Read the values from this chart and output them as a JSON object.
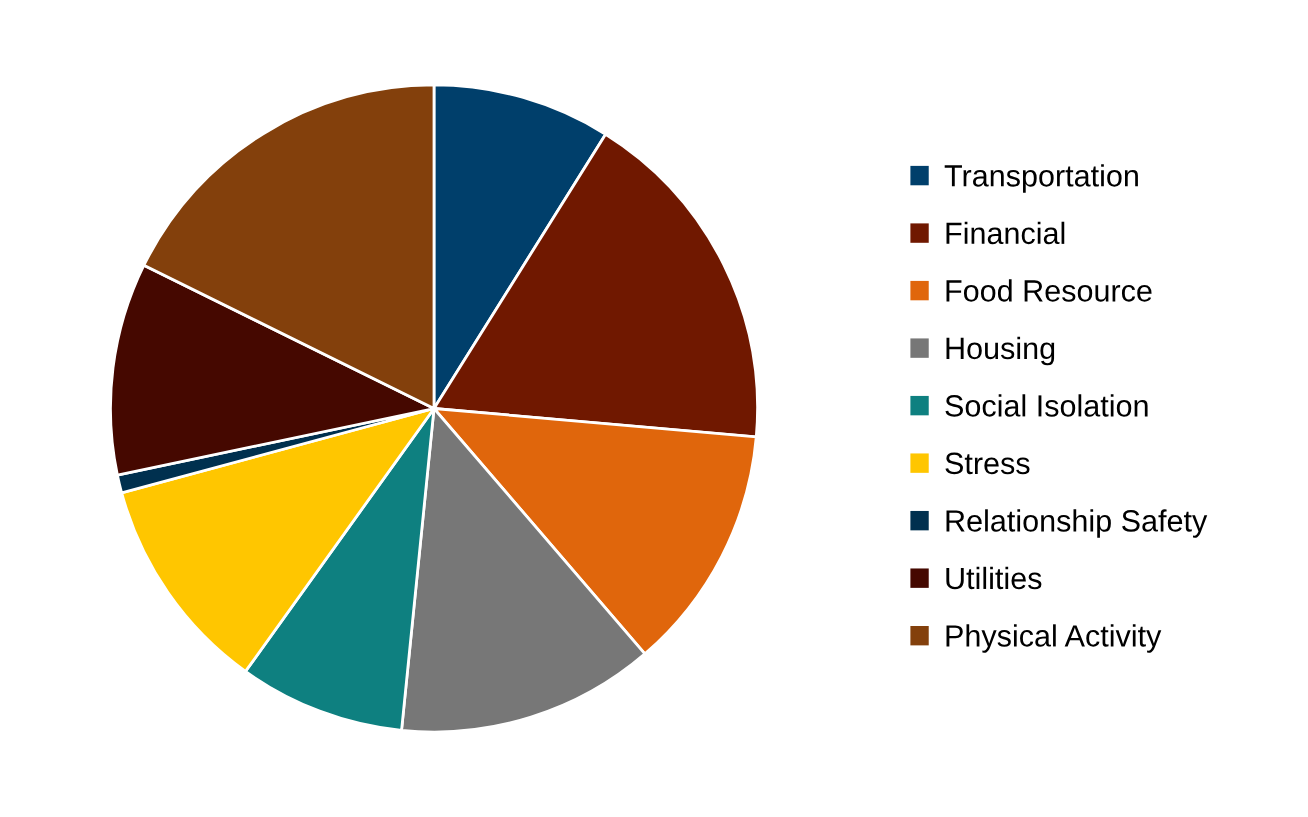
{
  "chart_data": {
    "type": "pie",
    "categories": [
      "Transportation",
      "Financial",
      "Food Resource",
      "Housing",
      "Social Isolation",
      "Stress",
      "Relationship Safety",
      "Utilities",
      "Physical Activity"
    ],
    "values": [
      8.9,
      17.5,
      12.3,
      12.9,
      8.3,
      10.9,
      0.9,
      10.6,
      17.7
    ],
    "colors": [
      "#003f6b",
      "#701800",
      "#e0660c",
      "#777777",
      "#0e8080",
      "#ffc600",
      "#00304f",
      "#450800",
      "#83400c"
    ],
    "legend": "right"
  }
}
